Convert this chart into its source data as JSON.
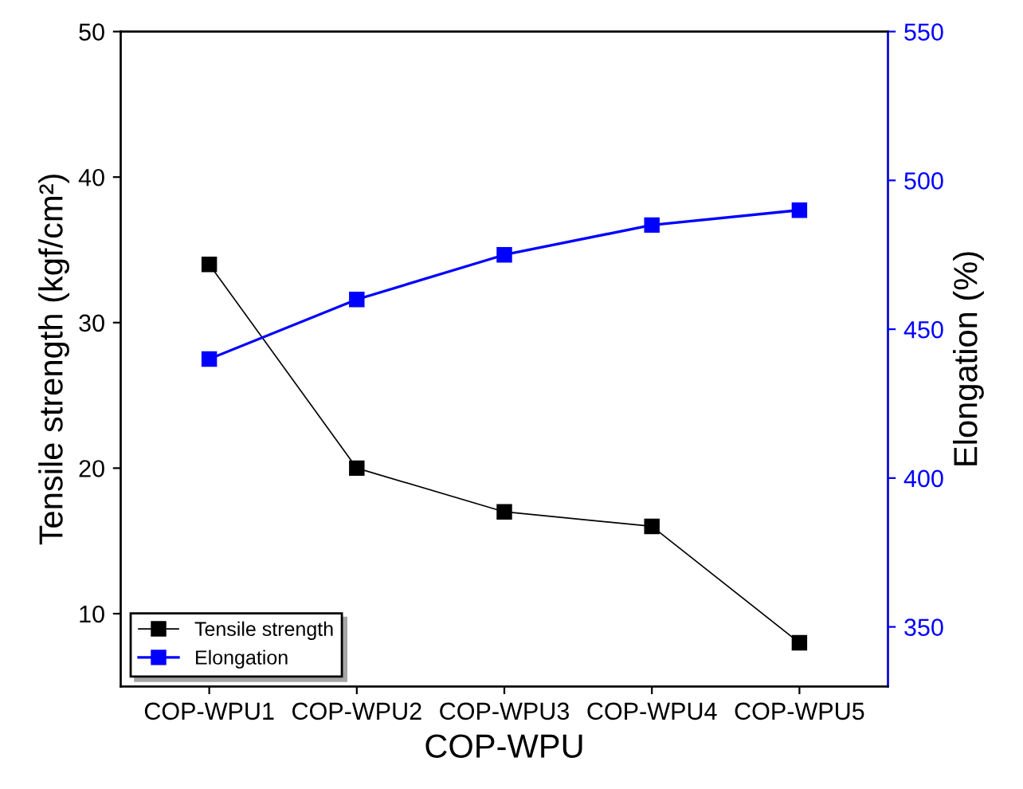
{
  "chart_data": {
    "type": "line",
    "xlabel": "COP-WPU",
    "ylabel": "Tensile strength (kgf/cm²)",
    "y2label": "Elongation (%)",
    "categories": [
      "COP-WPU1",
      "COP-WPU2",
      "COP-WPU3",
      "COP-WPU4",
      "COP-WPU5"
    ],
    "series": [
      {
        "name": "Tensile strength",
        "color": "#000000",
        "values": [
          34,
          20,
          17,
          16,
          8
        ]
      },
      {
        "name": "Elongation",
        "color": "#0000ff",
        "values": [
          440,
          460,
          475,
          485,
          490
        ],
        "axis": "y2"
      }
    ],
    "ylim": [
      5,
      50
    ],
    "yticks": [
      10,
      20,
      30,
      40,
      50
    ],
    "y2lim": [
      330,
      550
    ],
    "y2ticks": [
      350,
      400,
      450,
      500,
      550
    ],
    "marker": "square",
    "line_style": "solid",
    "legend": "bottom left",
    "grid": false
  }
}
